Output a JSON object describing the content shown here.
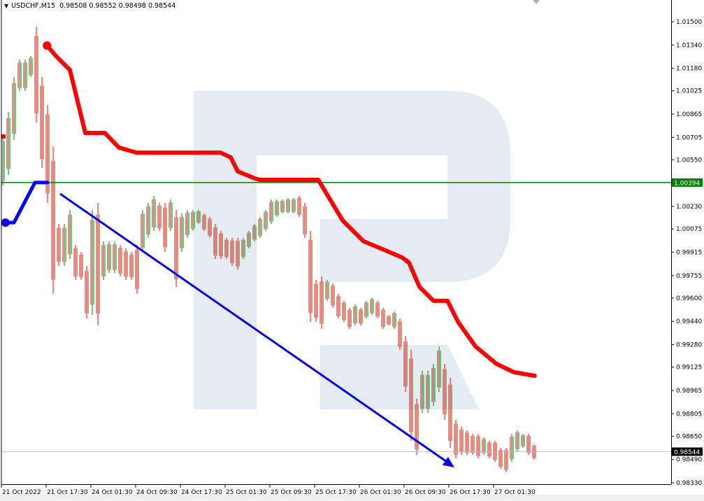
{
  "header": {
    "symbol": "USDCHF,M15",
    "ohlc": "0.98508 0.98552 0.98498 0.98544"
  },
  "colors": {
    "up": "#008000",
    "down": "#ff0000",
    "stop": "#ff0000",
    "support": "#0000ff",
    "level": "#008000",
    "arrow": "#0000ee",
    "watermark": "#e5ebf3"
  },
  "chart_data": {
    "type": "bar",
    "title": "",
    "ylim": [
      0.9833,
      1.015
    ],
    "y_ticks": [
      "1.01500",
      "1.01340",
      "1.01180",
      "1.01025",
      "1.00865",
      "1.00705",
      "1.00550",
      "1.00230",
      "1.00075",
      "0.99915",
      "0.99755",
      "0.99600",
      "0.99440",
      "0.99280",
      "0.99125",
      "0.98965",
      "0.98805",
      "0.98650",
      "0.98490",
      "0.98330"
    ],
    "x_ticks": [
      "21 Oct 2022",
      "21 Oct 17:30",
      "24 Oct 01:30",
      "24 Oct 09:30",
      "24 Oct 17:30",
      "25 Oct 01:30",
      "25 Oct 09:30",
      "25 Oct 17:30",
      "26 Oct 01:30",
      "26 Oct 09:30",
      "26 Oct 17:30",
      "27 Oct 01:30"
    ],
    "bars_high_low": [
      [
        1.00711,
        1.00374
      ],
      [
        1.00879,
        1.00446
      ],
      [
        1.0112,
        1.00687
      ],
      [
        1.0124,
        1.01024
      ],
      [
        1.0124,
        1.01024
      ],
      [
        1.01264,
        1.0112
      ],
      [
        1.01466,
        1.00807
      ],
      [
        1.0112,
        1.00495
      ],
      [
        1.00927,
        1.00254
      ],
      [
        1.00639,
        0.99629
      ],
      [
        1.0011,
        0.99821
      ],
      [
        1.0011,
        0.99821
      ],
      [
        1.00206,
        0.99869
      ],
      [
        0.99965,
        0.99725
      ],
      [
        0.99917,
        0.99725
      ],
      [
        0.99821,
        0.9946
      ],
      [
        1.00206,
        0.99484
      ],
      [
        1.00254,
        0.99412
      ],
      [
        0.9999,
        0.99725
      ],
      [
        0.9999,
        0.99773
      ],
      [
        0.9999,
        0.99773
      ],
      [
        0.99965,
        0.99749
      ],
      [
        0.99941,
        0.99725
      ],
      [
        0.99917,
        0.99725
      ],
      [
        0.99965,
        0.99629
      ],
      [
        1.00206,
        0.99917
      ],
      [
        1.00254,
        1.00014
      ],
      [
        1.00302,
        1.00062
      ],
      [
        1.00254,
        1.00062
      ],
      [
        1.00254,
        0.99917
      ],
      [
        1.00278,
        1.00062
      ],
      [
        1.00206,
        0.99677
      ],
      [
        1.00182,
        0.99917
      ],
      [
        1.00206,
        1.00014
      ],
      [
        1.00206,
        1.00062
      ],
      [
        1.00206,
        1.0011
      ],
      [
        1.00182,
        1.00062
      ],
      [
        1.00158,
        1.00014
      ],
      [
        1.0011,
        0.99869
      ],
      [
        1.00062,
        0.99869
      ],
      [
        1.00014,
        0.99869
      ],
      [
        1.00014,
        0.99821
      ],
      [
        1.00014,
        0.99797
      ],
      [
        1.00014,
        0.99869
      ],
      [
        1.00062,
        0.99941
      ],
      [
        1.0011,
        0.9999
      ],
      [
        1.00158,
        1.00014
      ],
      [
        1.00206,
        1.00062
      ],
      [
        1.00278,
        1.0011
      ],
      [
        1.00278,
        1.00158
      ],
      [
        1.00278,
        1.00182
      ],
      [
        1.00288,
        1.00182
      ],
      [
        1.00288,
        1.00182
      ],
      [
        1.00302,
        1.00158
      ],
      [
        1.00254,
        1.00014
      ],
      [
        1.00062,
        0.99436
      ],
      [
        0.99725,
        0.99436
      ],
      [
        0.99749,
        0.99388
      ],
      [
        0.99725,
        0.99581
      ],
      [
        0.99701,
        0.99533
      ],
      [
        0.99629,
        0.9946
      ],
      [
        0.99581,
        0.99436
      ],
      [
        0.99533,
        0.99388
      ],
      [
        0.99557,
        0.99412
      ],
      [
        0.99533,
        0.99412
      ],
      [
        0.99581,
        0.9946
      ],
      [
        0.99605,
        0.99484
      ],
      [
        0.99581,
        0.9946
      ],
      [
        0.99533,
        0.99388
      ],
      [
        0.99484,
        0.99412
      ],
      [
        0.99509,
        0.99388
      ],
      [
        0.9946,
        0.99244
      ],
      [
        0.9934,
        0.98955
      ],
      [
        0.99244,
        0.98619
      ],
      [
        0.98907,
        0.98522
      ],
      [
        0.991,
        0.98811
      ],
      [
        0.991,
        0.98811
      ],
      [
        0.99148,
        0.98859
      ],
      [
        0.99268,
        0.98955
      ],
      [
        0.99148,
        0.98763
      ],
      [
        0.99052,
        0.98571
      ],
      [
        0.98763,
        0.98498
      ],
      [
        0.98715,
        0.98522
      ],
      [
        0.98691,
        0.98522
      ],
      [
        0.98667,
        0.98522
      ],
      [
        0.98667,
        0.98498
      ],
      [
        0.98643,
        0.98522
      ],
      [
        0.98619,
        0.98498
      ],
      [
        0.98619,
        0.98474
      ],
      [
        0.98571,
        0.98426
      ],
      [
        0.98571,
        0.98402
      ],
      [
        0.98667,
        0.98474
      ],
      [
        0.98691,
        0.98547
      ],
      [
        0.98667,
        0.98571
      ],
      [
        0.98667,
        0.98522
      ],
      [
        0.98595,
        0.98489
      ]
    ],
    "stop_line": [
      [
        7.9,
        1.01336
      ],
      [
        9.5,
        1.01264
      ],
      [
        12,
        1.01168
      ],
      [
        14.75,
        1.00735
      ],
      [
        18.25,
        1.00735
      ],
      [
        20.75,
        1.00635
      ],
      [
        23.9,
        1.006
      ],
      [
        38.9,
        1.006
      ],
      [
        40.75,
        1.00567
      ],
      [
        42,
        1.00471
      ],
      [
        45.1,
        1.00422
      ],
      [
        46,
        1.00413
      ],
      [
        56.4,
        1.00413
      ],
      [
        60.75,
        1.00134
      ],
      [
        64.5,
        0.9999
      ],
      [
        67.6,
        0.99941
      ],
      [
        71.4,
        0.99879
      ],
      [
        72.6,
        0.99845
      ],
      [
        74.5,
        0.99677
      ],
      [
        77,
        0.99581
      ],
      [
        79.5,
        0.99581
      ],
      [
        81.4,
        0.99436
      ],
      [
        84.5,
        0.99268
      ],
      [
        88.25,
        0.99148
      ],
      [
        91.4,
        0.9909
      ],
      [
        95.1,
        0.99066
      ]
    ],
    "stop_start_stub": [
      0,
      1.00711
    ],
    "support_line": [
      [
        0.1,
        1.00119
      ],
      [
        2,
        1.00119
      ],
      [
        5.75,
        1.00394
      ],
      [
        8,
        1.00394
      ]
    ],
    "level": 1.00394,
    "level_label": "1.00394",
    "current_price": 0.98544,
    "current_label": "0.98544",
    "arrow": {
      "from": [
        10.25,
        1.00317
      ],
      "to": [
        80.75,
        0.98436
      ]
    }
  }
}
